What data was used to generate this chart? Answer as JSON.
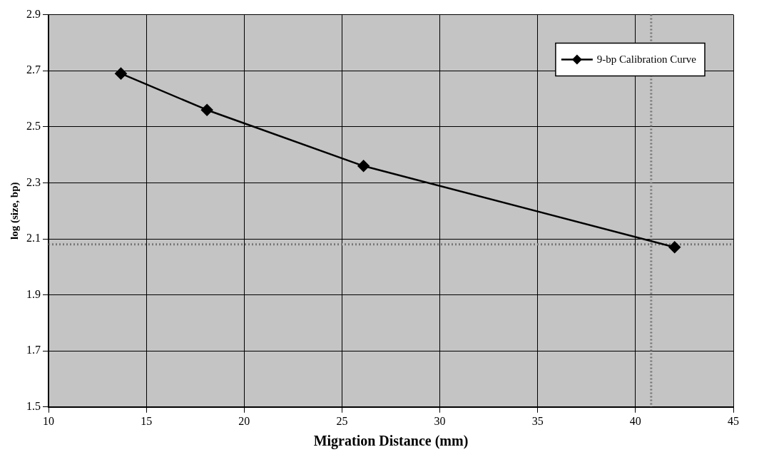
{
  "chart_data": {
    "type": "line",
    "xlabel": "Migration Distance (mm)",
    "ylabel": "log (size, bp)",
    "x": [
      13.7,
      18.1,
      26.1,
      42.0
    ],
    "series": [
      {
        "name": "9-bp Calibration Curve",
        "color": "#000000",
        "values": [
          2.69,
          2.56,
          2.36,
          2.07
        ]
      }
    ],
    "xlim": [
      10,
      45
    ],
    "xticks": [
      10,
      15,
      20,
      25,
      30,
      35,
      40,
      45
    ],
    "ylim": [
      1.5,
      2.9
    ],
    "yticks": [
      {
        "value": 1.5,
        "label": "1.5"
      },
      {
        "value": 1.7,
        "label": "1.7"
      },
      {
        "value": 1.9,
        "label": "1.9"
      },
      {
        "value": 2.1,
        "label": "2.1"
      },
      {
        "value": 2.3,
        "label": "2.3"
      },
      {
        "value": 2.5,
        "label": "2.5"
      },
      {
        "value": 2.7,
        "label": "2.7"
      },
      {
        "value": 2.9,
        "label": "2.9"
      }
    ],
    "ref_lines": [
      {
        "axis": "y",
        "value": 2.08,
        "color": "#777777",
        "line_style": "dotted"
      },
      {
        "axis": "x",
        "value": 40.8,
        "color": "#777777",
        "line_style": "dotted"
      }
    ],
    "grid": true,
    "legend": "top right",
    "marker": "diamond",
    "line_style": "solid"
  }
}
